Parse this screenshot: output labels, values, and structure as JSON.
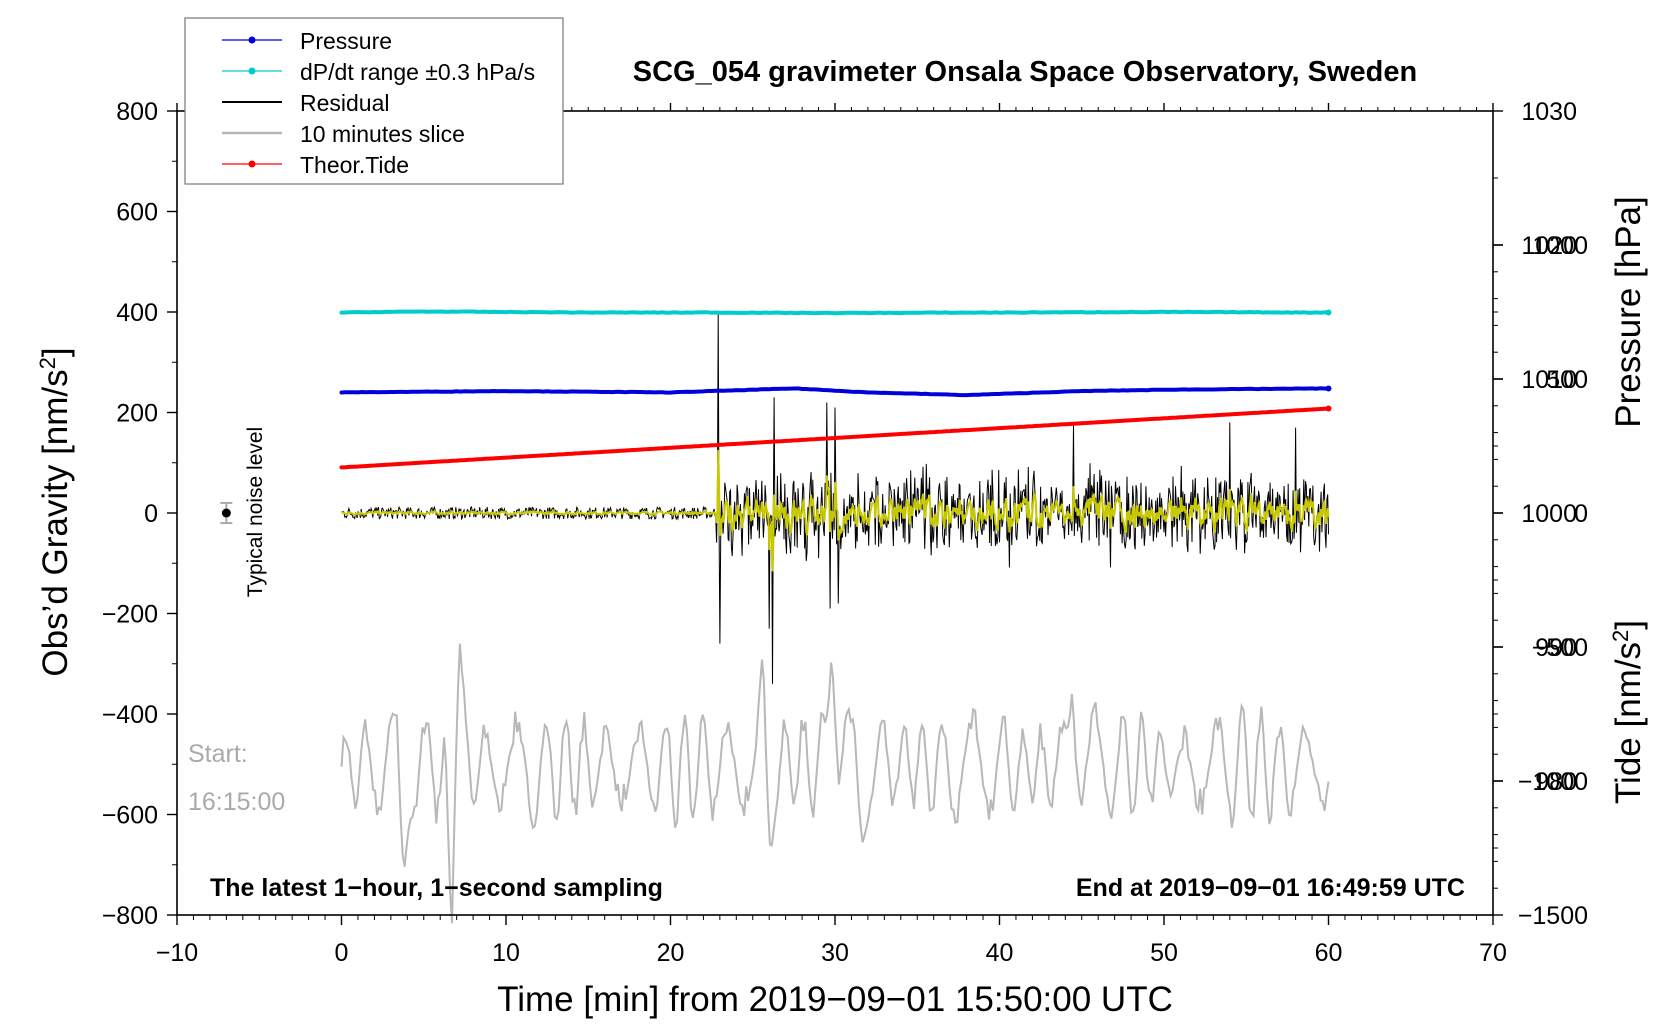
{
  "chart_data": {
    "type": "line",
    "title": "SCG_054 gravimeter Onsala Space Observatory, Sweden",
    "xlabel": "Time [min] from 2019−09−01 15:50:00 UTC",
    "ylabel_left": "Obs’d Gravity [nm/s",
    "ylabel_left_sup": "2",
    "ylabel_left_end": "]",
    "ylabel_right_pressure": "Pressure [hPa]",
    "ylabel_right_tide": "Tide [nm/s",
    "ylabel_right_tide_sup": "2",
    "ylabel_right_tide_end": "]",
    "xlim": [
      -10,
      70
    ],
    "ylim_gravity": [
      -800,
      800
    ],
    "ylim_pressure": [
      970,
      1030
    ],
    "ylim_tide": [
      -1500,
      1500
    ],
    "x_ticks": [
      "−10",
      "0",
      "10",
      "20",
      "30",
      "40",
      "50",
      "60",
      "70"
    ],
    "x_tick_values": [
      -10,
      0,
      10,
      20,
      30,
      40,
      50,
      60,
      70
    ],
    "y_ticks_gravity": [
      "−800",
      "−600",
      "−400",
      "−200",
      "0",
      "200",
      "400",
      "600",
      "800"
    ],
    "y_tick_values_gravity": [
      -800,
      -600,
      -400,
      -200,
      0,
      200,
      400,
      600,
      800
    ],
    "y_ticks_pressure": [
      "980",
      "990",
      "1000",
      "1010",
      "1020",
      "1030"
    ],
    "y_tick_values_pressure": [
      980,
      990,
      1000,
      1010,
      1020,
      1030
    ],
    "y_ticks_tide": [
      "−1500",
      "−1000",
      "−500",
      "0",
      "500",
      "1000"
    ],
    "y_tick_values_tide": [
      -1500,
      -1000,
      -500,
      0,
      500,
      1000
    ],
    "legend": [
      {
        "label": "Pressure",
        "color": "#0000dd",
        "marker": true
      },
      {
        "label": "dP/dt range ±0.3 hPa/s",
        "color": "#00cccc",
        "marker": true
      },
      {
        "label": "Residual",
        "color": "#000000",
        "marker": false
      },
      {
        "label": "10 minutes slice",
        "color": "#b8b8b8",
        "marker": false
      },
      {
        "label": "Theor.Tide",
        "color": "#ff0000",
        "marker": true
      }
    ],
    "series": [
      {
        "name": "Pressure",
        "axis": "pressure",
        "color": "#0000dd",
        "x": [
          0,
          10,
          20,
          27.5,
          32,
          38,
          45,
          50,
          60
        ],
        "y": [
          1009.0,
          1009.1,
          1009.0,
          1009.3,
          1009.0,
          1008.8,
          1009.1,
          1009.2,
          1009.3
        ]
      },
      {
        "name": "dP/dt range ±0.3 hPa/s",
        "axis": "gravity",
        "color": "#00cccc",
        "x": [
          0,
          5,
          15,
          22,
          30,
          40,
          50,
          60
        ],
        "y": [
          399,
          401,
          399,
          399,
          398,
          399,
          400,
          399
        ]
      },
      {
        "name": "Theor.Tide",
        "axis": "tide",
        "color": "#ff0000",
        "x": [
          0,
          60
        ],
        "y": [
          170,
          390
        ]
      }
    ],
    "residual_profile": {
      "color": "#000000",
      "filtered_color": "#c8c800",
      "x_range": [
        0,
        60
      ],
      "quiet_until": 22.8,
      "quiet_amplitude": 12,
      "spikes": [
        {
          "x": 22.9,
          "y": 400
        },
        {
          "x": 23.0,
          "y": -260
        },
        {
          "x": 26.0,
          "y": -230
        },
        {
          "x": 26.3,
          "y": 230
        },
        {
          "x": 26.2,
          "y": -340
        },
        {
          "x": 29.5,
          "y": 220
        },
        {
          "x": 29.7,
          "y": -190
        },
        {
          "x": 30.0,
          "y": 210
        },
        {
          "x": 30.2,
          "y": -180
        },
        {
          "x": 44.5,
          "y": 175
        },
        {
          "x": 54.0,
          "y": 180
        },
        {
          "x": 58.0,
          "y": 170
        }
      ]
    },
    "slice_profile": {
      "color": "#b8b8b8",
      "x_range": [
        0,
        60
      ],
      "center": -505,
      "extremes": [
        {
          "x": 3.8,
          "y": -720
        },
        {
          "x": 6.7,
          "y": -830
        },
        {
          "x": 7.2,
          "y": -260
        },
        {
          "x": 25.6,
          "y": -275
        },
        {
          "x": 26.1,
          "y": -680
        },
        {
          "x": 29.8,
          "y": -270
        },
        {
          "x": 31.7,
          "y": -660
        },
        {
          "x": 44.4,
          "y": -360
        }
      ]
    },
    "noise_level": {
      "label": "Typical noise level",
      "x": -7,
      "y": 0,
      "err": 20
    },
    "annotations": {
      "start_label": "Start:",
      "start_time": "16:15:00",
      "bottom_left": "The latest 1−hour, 1−second sampling",
      "bottom_right": "End at 2019−09−01 16:49:59 UTC"
    }
  }
}
